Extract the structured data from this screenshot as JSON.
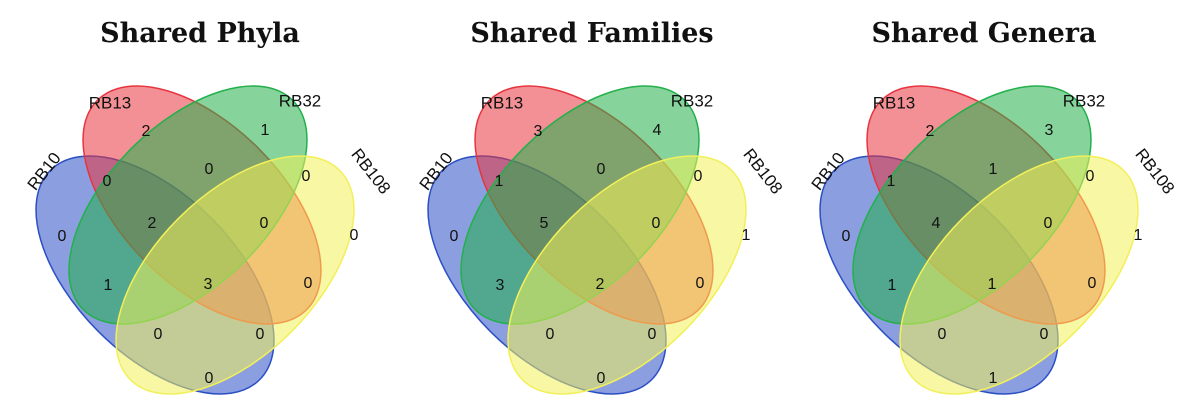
{
  "colors": {
    "RB10": "#2b4fc4",
    "RB13": "#e8343e",
    "RB32": "#22b04b",
    "RB108": "#f2f05a"
  },
  "sets": [
    "RB10",
    "RB13",
    "RB32",
    "RB108"
  ],
  "panels": [
    {
      "title": "Shared Phyla",
      "counts": {
        "RB10": "0",
        "RB13": "2",
        "RB32": "1",
        "RB108": "0",
        "RB10_RB13": "0",
        "RB13_RB32": "0",
        "RB32_RB108": "0",
        "RB10_RB32": "1",
        "RB13_RB108": "0",
        "RB10_RB108": "0",
        "RB10_RB13_RB32": "2",
        "RB13_RB32_RB108": "0",
        "RB10_RB32_RB108": "0",
        "RB10_RB13_RB108": "0",
        "all": "3"
      }
    },
    {
      "title": "Shared Families",
      "counts": {
        "RB10": "0",
        "RB13": "3",
        "RB32": "4",
        "RB108": "1",
        "RB10_RB13": "1",
        "RB13_RB32": "0",
        "RB32_RB108": "0",
        "RB10_RB32": "3",
        "RB13_RB108": "0",
        "RB10_RB108": "0",
        "RB10_RB13_RB32": "5",
        "RB13_RB32_RB108": "0",
        "RB10_RB32_RB108": "0",
        "RB10_RB13_RB108": "0",
        "all": "2"
      }
    },
    {
      "title": "Shared Genera",
      "counts": {
        "RB10": "0",
        "RB13": "2",
        "RB32": "3",
        "RB108": "1",
        "RB10_RB13": "1",
        "RB13_RB32": "1",
        "RB32_RB108": "0",
        "RB10_RB32": "1",
        "RB13_RB108": "0",
        "RB10_RB108": "1",
        "RB10_RB13_RB32": "4",
        "RB13_RB32_RB108": "0",
        "RB10_RB32_RB108": "0",
        "RB10_RB13_RB108": "0",
        "all": "1"
      }
    }
  ]
}
